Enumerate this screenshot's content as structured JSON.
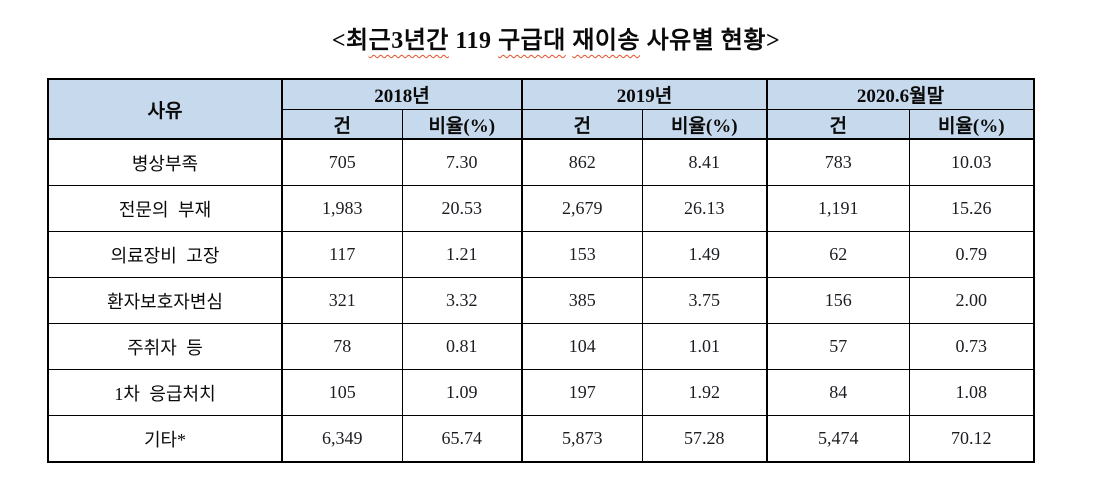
{
  "page": {
    "background": "#ffffff"
  },
  "title": {
    "full": "<최근3년간 119 구급대 재이송 사유별 현황>",
    "parts": [
      {
        "text": "<최",
        "misspelled": false
      },
      {
        "text": "근3년간",
        "misspelled": true
      },
      {
        "text": " 119 ",
        "misspelled": false
      },
      {
        "text": "구급대",
        "misspelled": true
      },
      {
        "text": " ",
        "misspelled": false
      },
      {
        "text": "재이송",
        "misspelled": true
      },
      {
        "text": " 사유별 현황>",
        "misspelled": false
      }
    ]
  },
  "colors": {
    "header_bg": "#c7d9ec",
    "border": "#000000",
    "squiggle": "#e8502a",
    "number_text": "#1b1d22"
  },
  "table": {
    "header": {
      "reason_label": "사유",
      "year_groups": [
        {
          "label": "2018년"
        },
        {
          "label": "2019년"
        },
        {
          "label": "2020.6월말"
        }
      ],
      "sub": {
        "count_label": "건",
        "ratio_label": "비율(%)"
      }
    },
    "rows": [
      {
        "label": "병상부족",
        "values": [
          "705",
          "7.30",
          "862",
          "8.41",
          "783",
          "10.03"
        ]
      },
      {
        "label": "전문의 부재",
        "values": [
          "1,983",
          "20.53",
          "2,679",
          "26.13",
          "1,191",
          "15.26"
        ]
      },
      {
        "label": "의료장비 고장",
        "values": [
          "117",
          "1.21",
          "153",
          "1.49",
          "62",
          "0.79"
        ]
      },
      {
        "label": "환자보호자변심",
        "values": [
          "321",
          "3.32",
          "385",
          "3.75",
          "156",
          "2.00"
        ]
      },
      {
        "label": "주취자 등",
        "values": [
          "78",
          "0.81",
          "104",
          "1.01",
          "57",
          "0.73"
        ]
      },
      {
        "label": "1차 응급처치",
        "values": [
          "105",
          "1.09",
          "197",
          "1.92",
          "84",
          "1.08"
        ]
      },
      {
        "label": "기타*",
        "values": [
          "6,349",
          "65.74",
          "5,873",
          "57.28",
          "5,474",
          "70.12"
        ]
      }
    ]
  }
}
